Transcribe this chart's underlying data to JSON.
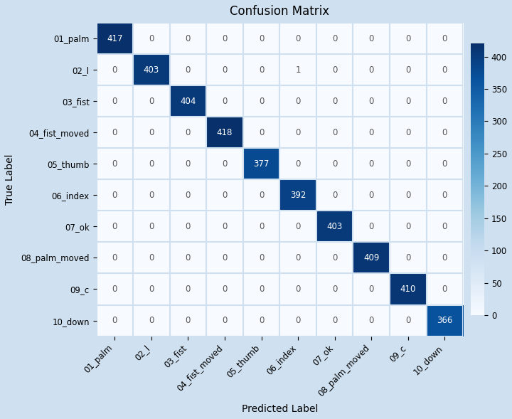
{
  "title": "Confusion Matrix",
  "xlabel": "Predicted Label",
  "ylabel": "True Label",
  "labels": [
    "01_palm",
    "02_l",
    "03_fist",
    "04_fist_moved",
    "05_thumb",
    "06_index",
    "07_ok",
    "08_palm_moved",
    "09_c",
    "10_down"
  ],
  "matrix": [
    [
      417,
      0,
      0,
      0,
      0,
      0,
      0,
      0,
      0,
      0
    ],
    [
      0,
      403,
      0,
      0,
      0,
      1,
      0,
      0,
      0,
      0
    ],
    [
      0,
      0,
      404,
      0,
      0,
      0,
      0,
      0,
      0,
      0
    ],
    [
      0,
      0,
      0,
      418,
      0,
      0,
      0,
      0,
      0,
      0
    ],
    [
      0,
      0,
      0,
      0,
      377,
      0,
      0,
      0,
      0,
      0
    ],
    [
      0,
      0,
      0,
      0,
      0,
      392,
      0,
      0,
      0,
      0
    ],
    [
      0,
      0,
      0,
      0,
      0,
      0,
      403,
      0,
      0,
      0
    ],
    [
      0,
      0,
      0,
      0,
      0,
      0,
      0,
      409,
      0,
      0
    ],
    [
      0,
      0,
      0,
      0,
      0,
      0,
      0,
      0,
      410,
      0
    ],
    [
      0,
      0,
      0,
      0,
      0,
      0,
      0,
      0,
      0,
      366
    ]
  ],
  "cmap": "Blues",
  "vmin": 0,
  "vmax": 420,
  "fig_bg_color": "#cfe0f0",
  "plot_bg_color": "#eaf2fb",
  "cbar_bg_color": "#ffffff",
  "title_fontsize": 12,
  "label_fontsize": 10,
  "tick_fontsize": 8.5,
  "annot_fontsize": 8.5,
  "cbar_ticks": [
    0,
    50,
    100,
    150,
    200,
    250,
    300,
    350,
    400
  ]
}
